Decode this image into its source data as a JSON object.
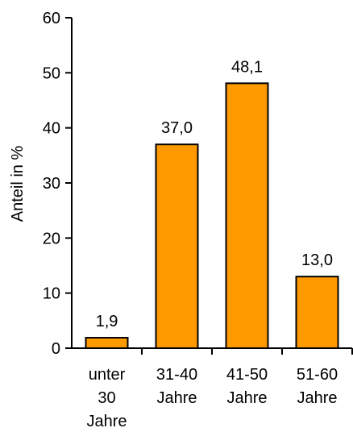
{
  "chart_data": {
    "type": "bar",
    "categories": [
      [
        "unter",
        "30",
        "Jahre"
      ],
      [
        "31-40",
        "Jahre"
      ],
      [
        "41-50",
        "Jahre"
      ],
      [
        "51-60",
        "Jahre"
      ]
    ],
    "values": [
      1.9,
      37.0,
      48.1,
      13.0
    ],
    "data_labels": [
      "1,9",
      "37,0",
      "48,1",
      "13,0"
    ],
    "ylabel": "Anteil in %",
    "ylim": [
      0,
      60
    ],
    "yticks": [
      0,
      10,
      20,
      30,
      40,
      50,
      60
    ],
    "bar_color": "#ff9900",
    "bar_stroke": "#000000",
    "grid": false
  }
}
